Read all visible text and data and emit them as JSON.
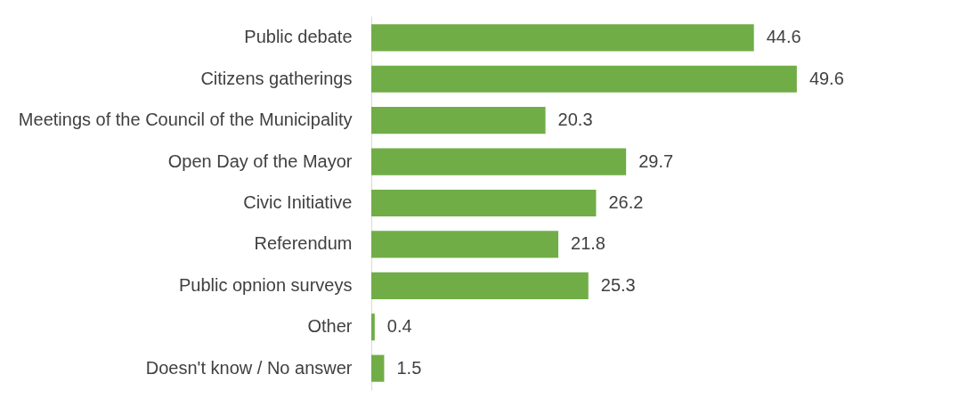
{
  "chart_data": {
    "type": "bar",
    "orientation": "horizontal",
    "categories": [
      "Public debate",
      "Citizens gatherings",
      "Meetings of the Council of the Municipality",
      "Open Day of the Mayor",
      "Civic Initiative",
      "Referendum",
      "Public opnion surveys",
      "Other",
      "Doesn't know / No answer"
    ],
    "values": [
      44.6,
      49.6,
      20.3,
      29.7,
      26.2,
      21.8,
      25.3,
      0.4,
      1.5
    ],
    "color": "#70ad47",
    "data_labels": true,
    "grid": false,
    "tick_labels": "y"
  }
}
